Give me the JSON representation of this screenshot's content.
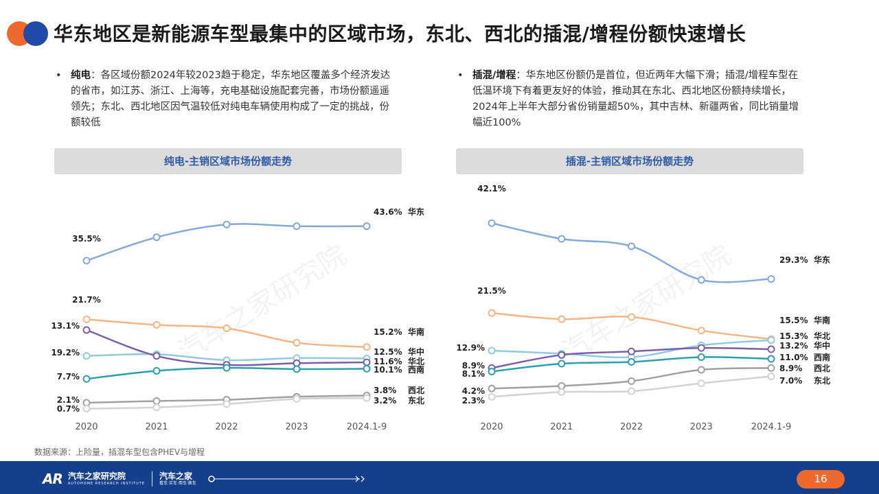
{
  "header": {
    "title": "华东地区是新能源车型最集中的区域市场，东北、西北的插混/增程份额快速增长"
  },
  "left": {
    "bullet_term": "纯电",
    "bullet_text": "：各区域份额2024年较2023趋于稳定，华东地区覆盖多个经济发达的省市，如江苏、浙江、上海等，充电基础设施配套完善，市场份额遥遥领先；东北、西北地区因气温较低对纯电车辆使用构成了一定的挑战，份额较低"
  },
  "right": {
    "bullet_term": "插混/增程",
    "bullet_text": "：华东地区份额仍是首位，但近两年大幅下滑；插混/增程车型在低温环境下有着更友好的体验，推动其在东北、西北地区份额持续增长，2024年上半年大部分省份销量超50%，其中吉林、新疆两省，同比销量增幅近100%"
  },
  "chart_data": [
    {
      "type": "line",
      "title": "纯电-主销区域市场份额走势",
      "categories": [
        "2020",
        "2021",
        "2022",
        "2023",
        "2024.1-9"
      ],
      "ylim": [
        0,
        50
      ],
      "unit": "%",
      "series": [
        {
          "name": "华东",
          "color": "#82a9dc",
          "values": [
            35.5,
            41.0,
            44.0,
            43.6,
            43.6
          ],
          "start_label": "35.5%",
          "end_label": "43.6%"
        },
        {
          "name": "华南",
          "color": "#f6b482",
          "values": [
            21.7,
            20.4,
            19.6,
            16.2,
            15.2
          ],
          "start_label": "21.7%",
          "end_label": "15.2%"
        },
        {
          "name": "华中",
          "color": "#8fcbe0",
          "values": [
            13.1,
            13.5,
            12.1,
            12.6,
            12.5
          ],
          "start_label": "13.1%",
          "end_label": "12.5%"
        },
        {
          "name": "华北",
          "color": "#7a5ea8",
          "values": [
            19.2,
            13.1,
            11.0,
            11.4,
            11.6
          ],
          "start_label": "19.2%",
          "end_label": "11.6%"
        },
        {
          "name": "西南",
          "color": "#2a9fb0",
          "values": [
            7.7,
            9.6,
            10.3,
            10.0,
            10.1
          ],
          "start_label": "7.7%",
          "end_label": "10.1%"
        },
        {
          "name": "西北",
          "color": "#a0a0a0",
          "values": [
            2.1,
            2.5,
            2.8,
            3.5,
            3.8
          ],
          "start_label": "2.1%",
          "end_label": "3.8%"
        },
        {
          "name": "东北",
          "color": "#d2d2d2",
          "values": [
            0.7,
            1.0,
            1.8,
            3.0,
            3.2
          ],
          "start_label": "0.7%",
          "end_label": "3.2%"
        }
      ]
    },
    {
      "type": "line",
      "title": "插混-主销区域市场份额走势",
      "categories": [
        "2020",
        "2021",
        "2022",
        "2023",
        "2024.1-9"
      ],
      "ylim": [
        0,
        50
      ],
      "unit": "%",
      "series": [
        {
          "name": "华东",
          "color": "#82a9dc",
          "values": [
            42.1,
            38.5,
            36.8,
            29.1,
            29.3
          ],
          "start_label": "42.1%",
          "end_label": "29.3%"
        },
        {
          "name": "华南",
          "color": "#f6b482",
          "values": [
            21.5,
            20.1,
            20.6,
            17.5,
            15.5
          ],
          "start_label": "21.5%",
          "end_label": "15.5%"
        },
        {
          "name": "华北",
          "color": "#8fcbe0",
          "values": [
            12.9,
            12.2,
            11.4,
            14.1,
            15.3
          ],
          "start_label": "12.9%",
          "end_label": "15.3%"
        },
        {
          "name": "华中",
          "color": "#7a5ea8",
          "values": [
            8.9,
            11.9,
            12.7,
            13.5,
            13.2
          ],
          "start_label": "8.9%",
          "end_label": "13.2%"
        },
        {
          "name": "西南",
          "color": "#2a9fb0",
          "values": [
            8.1,
            9.9,
            10.3,
            11.4,
            11.0
          ],
          "start_label": "8.1%",
          "end_label": "11.0%"
        },
        {
          "name": "西北",
          "color": "#a0a0a0",
          "values": [
            4.2,
            4.8,
            5.9,
            8.5,
            8.9
          ],
          "start_label": "4.2%",
          "end_label": "8.9%"
        },
        {
          "name": "东北",
          "color": "#d2d2d2",
          "values": [
            2.3,
            3.4,
            3.6,
            5.4,
            7.0
          ],
          "start_label": "2.3%",
          "end_label": "7.0%"
        }
      ]
    }
  ],
  "watermark": "汽车之家研究院",
  "footer": {
    "source": "数据来源：上险量，插混车型包含PHEV与增程",
    "brand_name": "汽车之家研究院",
    "brand_en": "AUTOHOME RESEARCH INSTITUTE",
    "brand2_name": "汽车之家",
    "brand2_sub": "看车·买车·用车·换车",
    "page": "16"
  }
}
